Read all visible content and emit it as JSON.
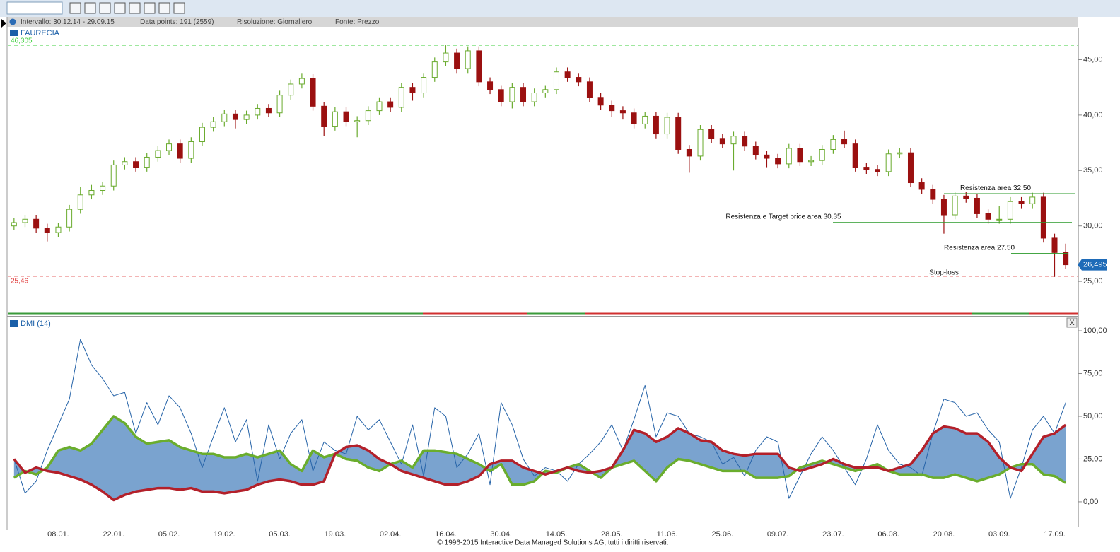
{
  "info_bar": {
    "interval": "Intervallo:  30.12.14 - 29.09.15",
    "data_points": "Data points:  191 (2559)",
    "resolution": "Risoluzione:  Giornaliero",
    "source": "Fonte:  Prezzo"
  },
  "chart_data": [
    {
      "type": "candlestick",
      "title": "FAURECIA",
      "open": [
        30.0,
        30.3,
        30.6,
        29.8,
        29.4,
        29.9,
        31.5,
        32.8,
        33.2,
        33.6,
        35.5,
        35.8,
        35.3,
        36.2,
        36.8,
        37.4,
        36.1,
        37.6,
        38.9,
        39.4,
        40.1,
        39.6,
        40.0,
        40.6,
        40.2,
        41.8,
        42.8,
        43.3,
        40.8,
        39.0,
        40.3,
        39.4,
        39.5,
        40.4,
        41.2,
        40.7,
        42.5,
        42.0,
        43.4,
        44.8,
        45.6,
        44.2,
        45.8,
        43.0,
        42.3,
        41.2,
        42.5,
        41.2,
        42.0,
        42.3,
        43.9,
        43.4,
        43.0,
        41.6,
        40.9,
        40.4,
        40.2,
        39.2,
        39.9,
        38.3,
        39.8,
        36.9,
        36.3,
        38.7,
        37.9,
        37.4,
        38.1,
        37.2,
        36.4,
        36.1,
        35.6,
        37.0,
        35.8,
        35.9,
        36.9,
        37.8,
        37.4,
        35.3,
        35.1,
        34.9,
        36.5,
        36.6,
        33.9,
        33.3,
        32.4,
        31.0,
        32.7,
        32.5,
        31.1,
        30.6,
        30.6,
        32.2,
        32.0,
        32.6,
        28.9,
        27.6
      ],
      "high": [
        30.7,
        31.0,
        31.0,
        30.2,
        30.3,
        31.9,
        33.5,
        33.7,
        34.0,
        35.9,
        36.2,
        36.2,
        36.6,
        37.2,
        37.8,
        37.8,
        38.0,
        39.3,
        39.8,
        40.5,
        40.5,
        40.4,
        41.0,
        41.0,
        42.2,
        43.2,
        43.8,
        43.7,
        41.2,
        40.7,
        40.7,
        39.9,
        40.8,
        41.6,
        41.6,
        42.9,
        42.9,
        43.8,
        45.2,
        46.3,
        46.0,
        46.2,
        46.2,
        43.4,
        42.7,
        42.9,
        42.9,
        42.4,
        42.7,
        44.3,
        44.3,
        43.8,
        43.4,
        42.0,
        41.3,
        40.8,
        40.6,
        40.3,
        40.3,
        40.2,
        40.2,
        37.3,
        39.1,
        39.1,
        38.3,
        38.5,
        38.5,
        37.6,
        36.8,
        36.5,
        37.4,
        37.4,
        36.3,
        37.3,
        38.2,
        38.6,
        37.8,
        35.7,
        35.5,
        36.9,
        37.0,
        37.0,
        34.3,
        33.7,
        32.8,
        33.1,
        33.1,
        32.9,
        31.5,
        31.8,
        32.6,
        32.6,
        33.0,
        33.0,
        29.3,
        28.4
      ],
      "low": [
        29.6,
        29.9,
        29.4,
        28.6,
        29.0,
        29.5,
        31.1,
        32.4,
        32.8,
        33.2,
        35.1,
        34.9,
        34.9,
        35.8,
        36.4,
        35.7,
        35.7,
        37.2,
        38.5,
        39.0,
        38.8,
        39.2,
        39.6,
        39.8,
        39.8,
        41.4,
        42.4,
        40.4,
        38.1,
        38.6,
        39.0,
        38.0,
        39.1,
        40.0,
        40.3,
        40.3,
        41.3,
        41.6,
        43.0,
        44.4,
        43.8,
        43.8,
        42.6,
        41.9,
        40.8,
        40.6,
        40.8,
        40.8,
        41.6,
        41.9,
        43.0,
        42.6,
        41.2,
        40.5,
        39.8,
        39.6,
        38.8,
        38.8,
        37.9,
        37.9,
        36.5,
        34.8,
        35.9,
        37.5,
        37.0,
        35.0,
        36.8,
        36.0,
        35.3,
        35.2,
        35.2,
        35.4,
        35.4,
        35.5,
        36.5,
        37.0,
        34.9,
        34.7,
        34.5,
        34.5,
        36.1,
        33.5,
        32.9,
        32.0,
        29.3,
        30.6,
        32.1,
        30.7,
        30.2,
        30.2,
        30.2,
        31.6,
        31.6,
        28.5,
        25.4,
        26.1
      ],
      "close": [
        30.3,
        30.6,
        29.8,
        29.4,
        29.9,
        31.5,
        32.8,
        33.2,
        33.6,
        35.5,
        35.8,
        35.3,
        36.2,
        36.8,
        37.4,
        36.1,
        37.6,
        38.9,
        39.4,
        40.1,
        39.6,
        40.0,
        40.6,
        40.2,
        41.8,
        42.8,
        43.3,
        40.8,
        39.0,
        40.3,
        39.4,
        39.5,
        40.4,
        41.2,
        40.7,
        42.5,
        42.0,
        43.4,
        44.8,
        45.6,
        44.2,
        45.8,
        43.0,
        42.3,
        41.2,
        42.5,
        41.2,
        42.0,
        42.3,
        43.9,
        43.4,
        43.0,
        41.6,
        40.9,
        40.4,
        40.2,
        39.2,
        39.9,
        38.3,
        39.8,
        36.9,
        36.3,
        38.7,
        37.9,
        37.4,
        38.1,
        37.2,
        36.4,
        36.1,
        35.6,
        37.0,
        35.8,
        35.9,
        36.9,
        37.8,
        37.4,
        35.3,
        35.1,
        34.9,
        36.5,
        36.6,
        33.9,
        33.3,
        32.4,
        31.0,
        32.7,
        32.5,
        31.1,
        30.6,
        30.6,
        32.2,
        32.0,
        32.6,
        28.9,
        27.6,
        26.5
      ],
      "up_color": "#6aab2e",
      "down_color": "#9b1010",
      "ylim": [
        22.2,
        47.9
      ],
      "yticks": [
        {
          "value": 25,
          "label": "25,00"
        },
        {
          "value": 30,
          "label": "30,00"
        },
        {
          "value": 35,
          "label": "35,00"
        },
        {
          "value": 40,
          "label": "40,00"
        },
        {
          "value": 45,
          "label": "45,00"
        }
      ],
      "reference_lines": [
        {
          "value": 46.305,
          "label": "46,305",
          "color": "#3ccf3c"
        },
        {
          "value": 25.46,
          "label": "25,46",
          "color": "#e03a3a"
        }
      ],
      "last": {
        "value": 26.495,
        "label": "26,495",
        "color": "#1e6bb8"
      },
      "annotations": [
        {
          "text": "Resistenza area 32.50",
          "value": 32.9
        },
        {
          "text": "Resistenza e Target price area 30.35",
          "value": 30.3
        },
        {
          "text": "Resistenza area 27.50",
          "value": 27.5
        },
        {
          "text": "Stop-loss"
        }
      ],
      "annotation_color": "#2a9a2a"
    },
    {
      "type": "dmi",
      "title": "DMI (14)",
      "categories": [
        null,
        null,
        null,
        null,
        "08.01.",
        null,
        null,
        null,
        null,
        "22.01.",
        null,
        null,
        null,
        null,
        "05.02.",
        null,
        null,
        null,
        null,
        "19.02.",
        null,
        null,
        null,
        null,
        "05.03.",
        null,
        null,
        null,
        null,
        "19.03.",
        null,
        null,
        null,
        null,
        "02.04.",
        null,
        null,
        null,
        null,
        "16.04.",
        null,
        null,
        null,
        null,
        "30.04.",
        null,
        null,
        null,
        null,
        "14.05.",
        null,
        null,
        null,
        null,
        "28.05.",
        null,
        null,
        null,
        null,
        "11.06.",
        null,
        null,
        null,
        null,
        "25.06.",
        null,
        null,
        null,
        null,
        "09.07.",
        null,
        null,
        null,
        null,
        "23.07.",
        null,
        null,
        null,
        null,
        "06.08.",
        null,
        null,
        null,
        null,
        "20.08.",
        null,
        null,
        null,
        null,
        "03.09.",
        null,
        null,
        null,
        null,
        "17.09.",
        null
      ],
      "series": [
        {
          "color": "#2563a8",
          "values": [
            25,
            5,
            12,
            30,
            45,
            60,
            95,
            80,
            72,
            62,
            64,
            40,
            58,
            45,
            62,
            55,
            40,
            20,
            38,
            55,
            35,
            48,
            12,
            45,
            25,
            40,
            48,
            18,
            35,
            30,
            28,
            50,
            42,
            48,
            35,
            22,
            45,
            15,
            55,
            50,
            20,
            28,
            40,
            10,
            58,
            45,
            25,
            15,
            20,
            18,
            12,
            22,
            28,
            35,
            45,
            30,
            48,
            68,
            38,
            52,
            50,
            40,
            38,
            35,
            22,
            26,
            15,
            30,
            38,
            35,
            2,
            15,
            28,
            38,
            30,
            20,
            10,
            25,
            45,
            30,
            22,
            20,
            15,
            40,
            60,
            58,
            50,
            52,
            42,
            35,
            2,
            20,
            42,
            50,
            40,
            58
          ]
        },
        {
          "color": "#6aad2d",
          "values": [
            14,
            18,
            16,
            20,
            30,
            32,
            30,
            34,
            42,
            50,
            46,
            38,
            34,
            35,
            36,
            32,
            30,
            28,
            28,
            26,
            26,
            28,
            26,
            28,
            30,
            22,
            18,
            30,
            26,
            28,
            25,
            24,
            20,
            18,
            22,
            24,
            20,
            30,
            30,
            29,
            28,
            25,
            22,
            18,
            22,
            10,
            10,
            12,
            18,
            17,
            20,
            22,
            18,
            14,
            20,
            22,
            24,
            18,
            12,
            20,
            25,
            24,
            22,
            20,
            18,
            18,
            18,
            14,
            14,
            14,
            15,
            20,
            22,
            24,
            22,
            20,
            18,
            20,
            22,
            18,
            16,
            16,
            16,
            14,
            14,
            16,
            14,
            12,
            14,
            16,
            20,
            22,
            22,
            16,
            15,
            11
          ]
        },
        {
          "color": "#b3202a",
          "values": [
            25,
            17,
            20,
            18,
            17,
            15,
            13,
            10,
            6,
            1,
            4,
            6,
            7,
            8,
            8,
            7,
            8,
            6,
            6,
            5,
            6,
            7,
            10,
            12,
            13,
            12,
            10,
            10,
            12,
            28,
            32,
            33,
            30,
            25,
            22,
            18,
            16,
            14,
            12,
            10,
            10,
            12,
            15,
            22,
            24,
            24,
            20,
            18,
            16,
            18,
            20,
            18,
            17,
            18,
            20,
            30,
            42,
            40,
            35,
            38,
            43,
            40,
            36,
            35,
            30,
            28,
            27,
            28,
            28,
            28,
            20,
            18,
            20,
            22,
            25,
            22,
            20,
            20,
            20,
            18,
            20,
            22,
            30,
            40,
            44,
            43,
            40,
            40,
            35,
            26,
            20,
            18,
            28,
            38,
            40,
            45
          ]
        }
      ],
      "fill_color": "#7aa3cf",
      "ylim": [
        -14.5,
        102.5
      ],
      "yticks": [
        {
          "value": 0,
          "label": "0,00"
        },
        {
          "value": 25,
          "label": "25,00"
        },
        {
          "value": 50,
          "label": "50,00"
        },
        {
          "value": 75,
          "label": "75,00"
        },
        {
          "value": 100,
          "label": "100,00"
        }
      ],
      "close_button": "X"
    }
  ],
  "footer": "© 1996-2015 Interactive Data Managed Solutions AG, tutti i diritti riservati."
}
